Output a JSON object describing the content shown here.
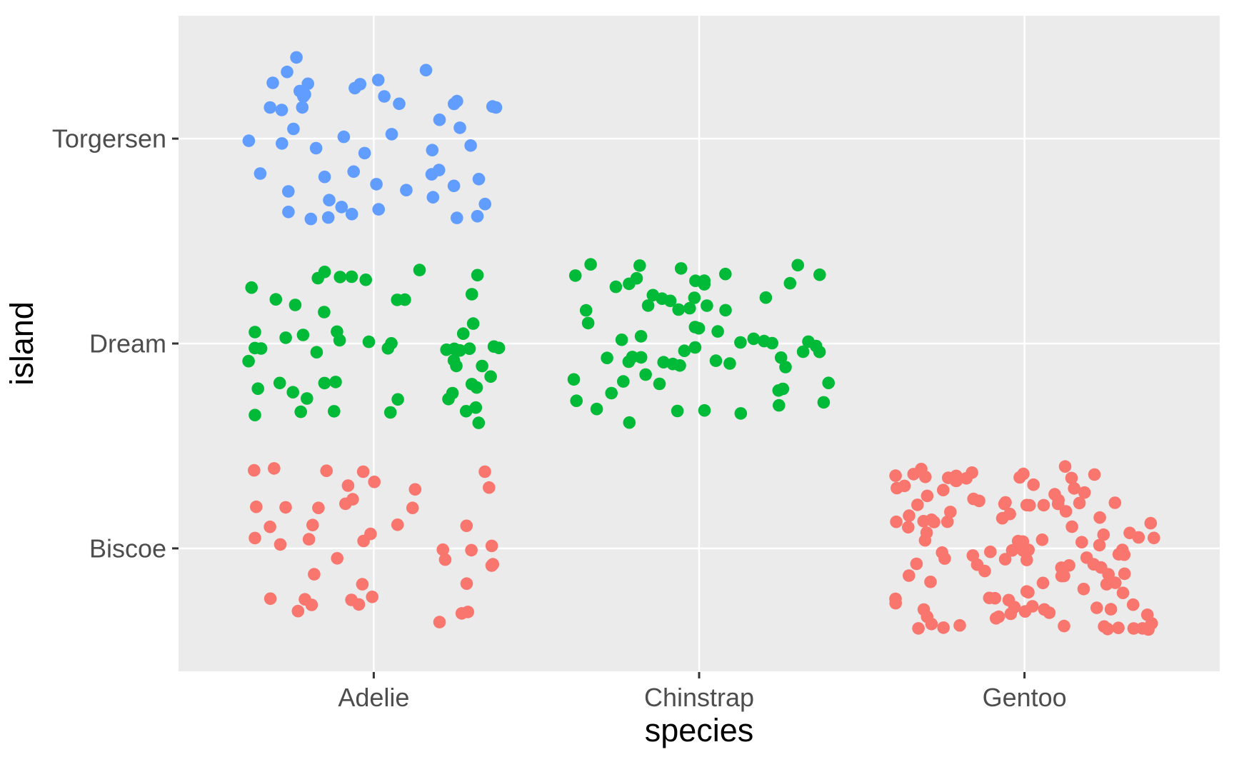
{
  "chart_data": {
    "type": "scatter",
    "style": "jittered-categorical",
    "title": "",
    "xlabel": "species",
    "ylabel": "island",
    "x_categories": [
      "Adelie",
      "Chinstrap",
      "Gentoo"
    ],
    "y_categories": [
      "Torgersen",
      "Dream",
      "Biscoe"
    ],
    "series": [
      {
        "species": "Adelie",
        "island": "Torgersen",
        "count": 52,
        "color": "#619CFF"
      },
      {
        "species": "Adelie",
        "island": "Dream",
        "count": 56,
        "color": "#00BA38"
      },
      {
        "species": "Adelie",
        "island": "Biscoe",
        "count": 44,
        "color": "#F8766D"
      },
      {
        "species": "Chinstrap",
        "island": "Dream",
        "count": 68,
        "color": "#00BA38"
      },
      {
        "species": "Gentoo",
        "island": "Biscoe",
        "count": 124,
        "color": "#F8766D"
      }
    ],
    "island_colors": {
      "Torgersen": "#619CFF",
      "Dream": "#00BA38",
      "Biscoe": "#F8766D"
    },
    "jitter_width": 0.4,
    "jitter_height": 0.4,
    "point_radius": 8.8,
    "legend_position": "none",
    "grid": "major-on",
    "panel_background": "#EBEBEB",
    "grid_color": "#FFFFFF",
    "tick_mark_color": "#333333",
    "tick_label_color": "#4D4D4D",
    "axis_title_color": "#000000"
  }
}
